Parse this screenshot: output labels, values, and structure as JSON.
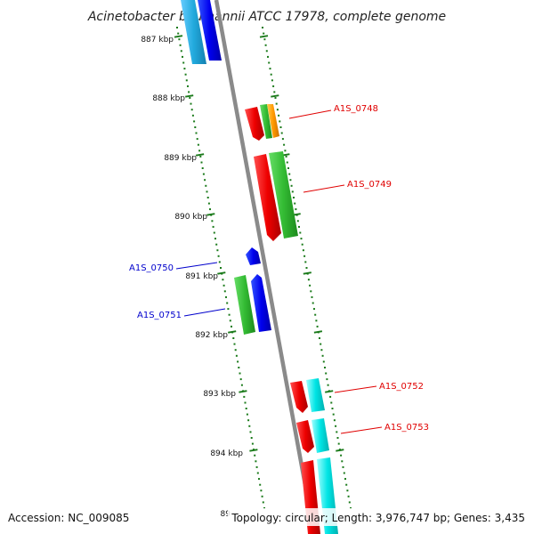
{
  "title": "Acinetobacter baumannii ATCC 17978, complete genome",
  "footer": {
    "accession": "Accession: NC_009085",
    "summary": "Topology: circular; Length: 3,976,747 bp; Genes: 3,435"
  },
  "colors": {
    "backbone": "#888888",
    "ticks": "#1a7a1a",
    "forward_label": "#e00000",
    "reverse_label": "#0000cc",
    "gene_red": "#ee0000",
    "gene_green": "#33bb33",
    "gene_blue": "#0000ee",
    "gene_cyan": "#00e5e5",
    "gene_orange": "#ff9900",
    "gene_lightblue": "#22aadd"
  },
  "ticks": [
    "887 kbp",
    "888 kbp",
    "889 kbp",
    "890 kbp",
    "891 kbp",
    "892 kbp",
    "893 kbp",
    "894 kbp",
    "89"
  ],
  "gene_labels": {
    "A1S_0748": "A1S_0748",
    "A1S_0749": "A1S_0749",
    "A1S_0750": "A1S_0750",
    "A1S_0751": "A1S_0751",
    "A1S_0752": "A1S_0752",
    "A1S_0753": "A1S_0753"
  }
}
